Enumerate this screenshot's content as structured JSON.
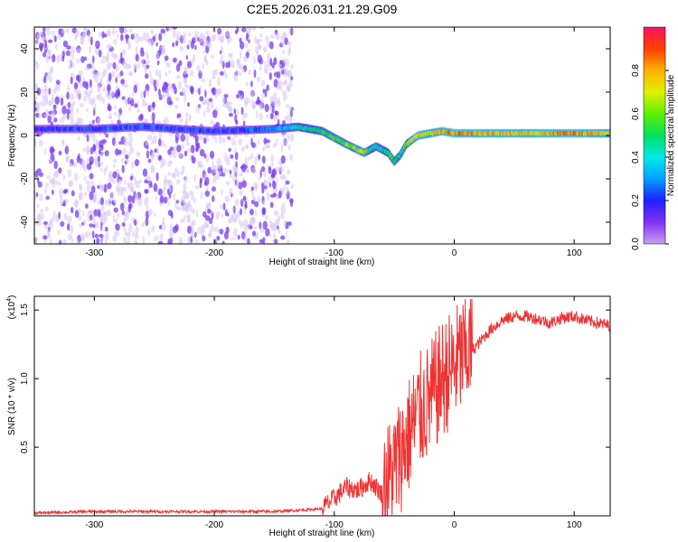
{
  "title": "C2E5.2026.031.21.29.G09",
  "colors": {
    "snr_line": "#ee3333",
    "track_low": "#5a1ce0",
    "track_high": "#ff2020",
    "scatter_light": "#d8c4f2",
    "scatter_dark": "#7a3cf0"
  },
  "chart_data": [
    {
      "type": "heatmap",
      "xlabel": "Height of straight line (km)",
      "ylabel": "Frequency (Hz)",
      "xlim": [
        -350,
        130
      ],
      "ylim": [
        -50,
        50
      ],
      "x_ticks": [
        -300,
        -200,
        -100,
        0,
        100
      ],
      "y_ticks": [
        -40,
        -20,
        0,
        20,
        40
      ],
      "colorbar": {
        "label": "Normalized spectral amplitude",
        "range": [
          0,
          1
        ],
        "ticks": [
          "0.0",
          "0.2",
          "0.4",
          "0.6",
          "0.8"
        ],
        "colormap": [
          "#c8a0f0",
          "#8030f0",
          "#2020ff",
          "#00a0ff",
          "#00e8e8",
          "#00e060",
          "#60f000",
          "#e0f000",
          "#ffb000",
          "#ff4000",
          "#ff1060"
        ]
      },
      "noise_region_x": [
        -350,
        -135
      ],
      "ridge": {
        "x": [
          -350,
          -300,
          -260,
          -200,
          -150,
          -130,
          -110,
          -90,
          -75,
          -65,
          -55,
          -50,
          -45,
          -40,
          -30,
          -20,
          -10,
          0,
          20,
          60,
          100,
          130
        ],
        "y": [
          3,
          3,
          4,
          2,
          3,
          4,
          2,
          -4,
          -8,
          -5,
          -8,
          -12,
          -9,
          -4,
          0,
          1,
          2,
          1,
          1,
          1,
          1,
          1
        ],
        "amplitude": [
          0.18,
          0.22,
          0.25,
          0.2,
          0.3,
          0.45,
          0.55,
          0.6,
          0.65,
          0.4,
          0.5,
          0.55,
          0.45,
          0.6,
          0.75,
          0.7,
          0.8,
          0.85,
          0.8,
          0.75,
          0.85,
          0.7
        ]
      }
    },
    {
      "type": "line",
      "xlabel": "Height of straight line (km)",
      "ylabel": "SNR (10 * v/v)",
      "y_multiplier": "(x10",
      "y_multiplier_exp": "4",
      "y_multiplier_close": ")",
      "xlim": [
        -350,
        130
      ],
      "ylim": [
        0,
        1.6
      ],
      "x_ticks": [
        -300,
        -200,
        -100,
        0,
        100
      ],
      "y_ticks": [
        "0.5",
        "1.0",
        "1.5"
      ],
      "series": [
        {
          "x": [
            -350,
            -300,
            -250,
            -200,
            -150,
            -110,
            -100,
            -90,
            -80,
            -70,
            -60,
            -50,
            -40,
            -30,
            -20,
            -10,
            0,
            10,
            20,
            30,
            40,
            50,
            60,
            70,
            80,
            90,
            100,
            110,
            120,
            130
          ],
          "values": [
            0.02,
            0.03,
            0.03,
            0.03,
            0.03,
            0.05,
            0.12,
            0.2,
            0.18,
            0.25,
            0.15,
            0.3,
            0.5,
            0.7,
            0.8,
            0.95,
            1.05,
            1.15,
            1.25,
            1.35,
            1.42,
            1.45,
            1.45,
            1.43,
            1.4,
            1.44,
            1.45,
            1.42,
            1.4,
            1.38
          ]
        }
      ]
    }
  ]
}
